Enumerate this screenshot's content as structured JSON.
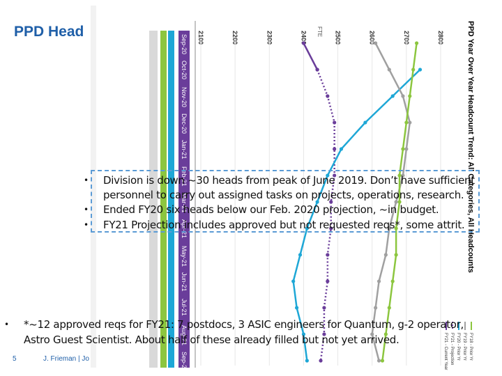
{
  "header": {
    "title": "PPD Head"
  },
  "chart_data": {
    "type": "line",
    "title": "PPD Year Over Year Headcount Trend: All Categories, All Headcounts",
    "xlabel": "FTE",
    "categories": [
      "Sep-20",
      "Oct-20",
      "Nov-20",
      "Dec-20",
      "Jan-21",
      "Feb-21",
      "Mar-21",
      "Apr-21",
      "May-21",
      "Jun-21",
      "Jul-21",
      "Aug-21",
      "Sep-21"
    ],
    "xlim": [
      2100,
      2800
    ],
    "xticks": [
      2100,
      2200,
      2300,
      2400,
      2500,
      2600,
      2700,
      2800
    ],
    "grid": true,
    "series": [
      {
        "name": "FY21 - Current Year",
        "color": "#6a3d9a",
        "dash": false,
        "values": [
          2400,
          2440,
          null,
          null,
          null,
          null,
          null,
          null,
          null,
          null,
          null,
          null,
          null
        ]
      },
      {
        "name": "FY21 - Projection",
        "color": "#6a3d9a",
        "dash": true,
        "values": [
          null,
          2440,
          2470,
          2490,
          2490,
          2490,
          2480,
          2480,
          2470,
          2470,
          2460,
          2460,
          2450
        ]
      },
      {
        "name": "FY20 - Prior Yr",
        "color": "#1ea7d6",
        "dash": false,
        "values": [
          null,
          2740,
          2660,
          2580,
          2510,
          2470,
          2440,
          2410,
          2390,
          2370,
          2380,
          2400,
          2410
        ]
      },
      {
        "name": "FY19 - Prior Yr",
        "color": "#a0a0a0",
        "dash": false,
        "values": [
          2610,
          2650,
          2690,
          2710,
          2700,
          2690,
          2670,
          2650,
          2640,
          2620,
          2610,
          2600,
          2620
        ]
      },
      {
        "name": "FY18 - Prior Yr",
        "color": "#8cc63f",
        "dash": false,
        "values": [
          2730,
          2720,
          2710,
          2700,
          2690,
          2680,
          2680,
          2670,
          2670,
          2660,
          2650,
          2640,
          2630
        ]
      }
    ]
  },
  "bullets": [
    "Division is down ~30 heads from peak of June 2019. Don’t have sufficient personnel to carry out assigned tasks on projects, operations, research.",
    "Ended FY20 six heads below our Feb. 2020 projection, ~in budget.",
    "FY21 Projection includes approved but not requested reqs*, some attrit."
  ],
  "note": "*~12 approved reqs for FY21: 7 postdocs, 3 ASIC engineers for Quantum, g-2 operator, Astro Guest Scientist. About half of these already filled but not yet arrived.",
  "footer": {
    "page_number": "5",
    "author": "J. Frieman | Jo"
  }
}
